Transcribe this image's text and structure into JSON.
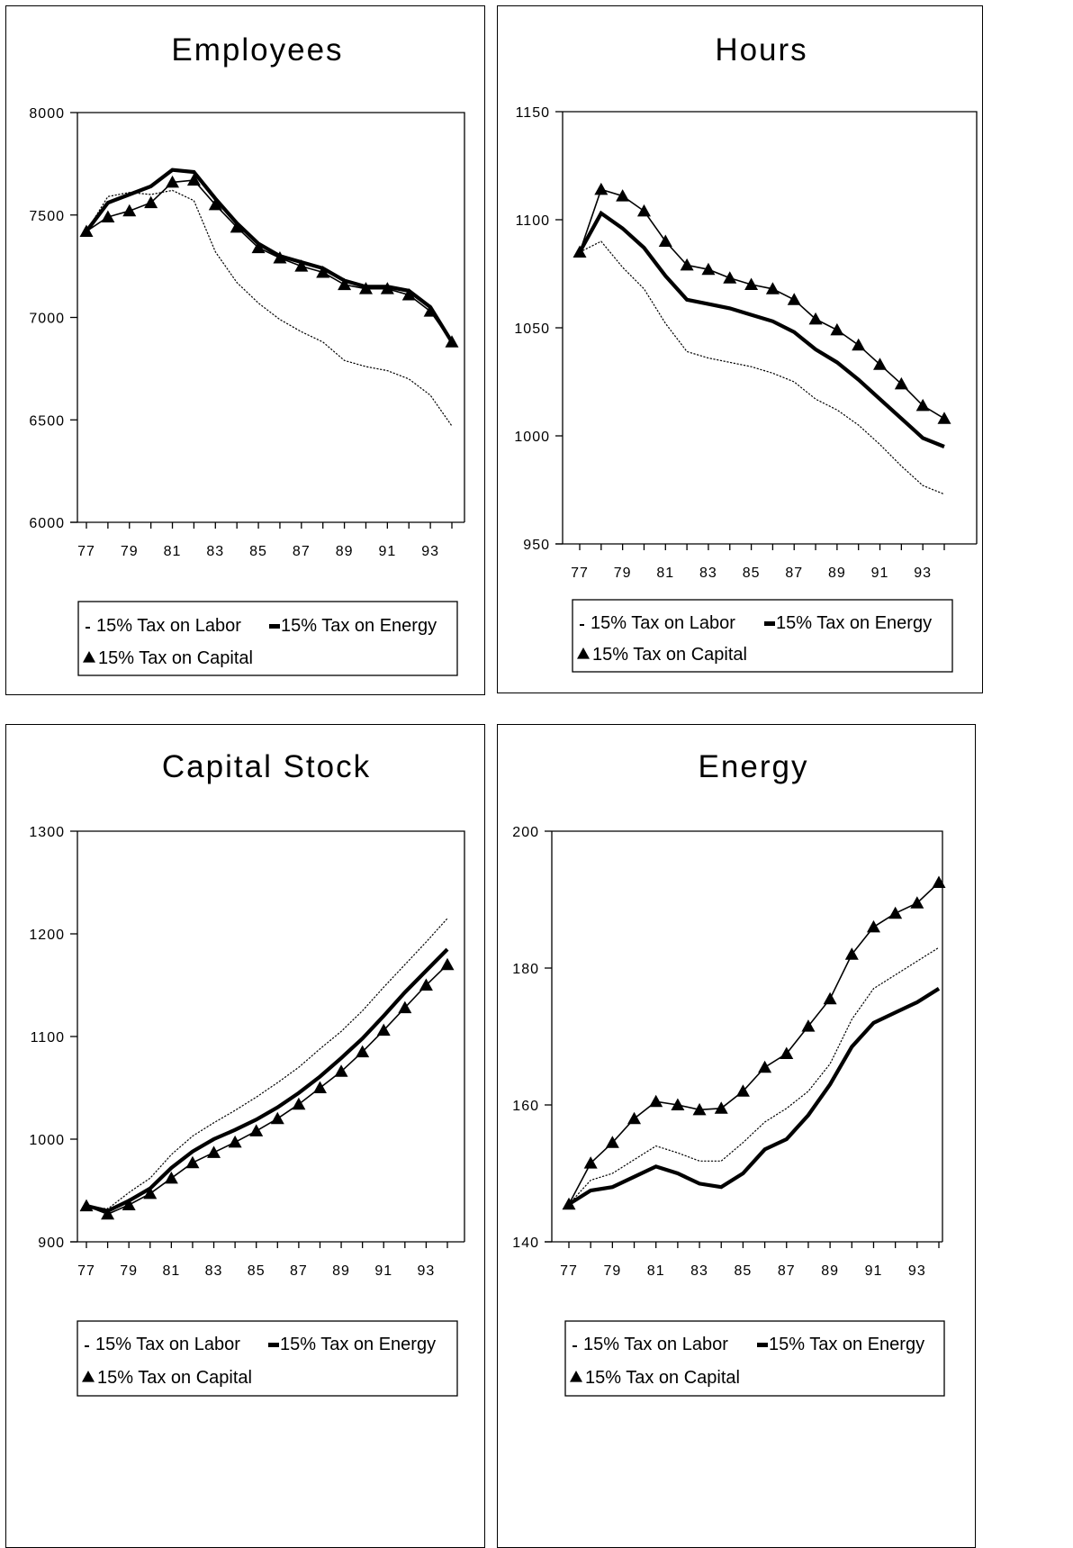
{
  "legend": {
    "labor": "15% Tax on Labor",
    "energy": "15% Tax on Energy",
    "capital": "15% Tax on Capital"
  },
  "chart_data": [
    {
      "type": "line",
      "title": "Employees",
      "x": [
        77,
        78,
        79,
        80,
        81,
        82,
        83,
        84,
        85,
        86,
        87,
        88,
        89,
        90,
        91,
        92,
        93,
        94
      ],
      "xticks": [
        "77",
        "79",
        "81",
        "83",
        "85",
        "87",
        "89",
        "91",
        "93"
      ],
      "yticks": [
        "6000",
        "6500",
        "7000",
        "7500",
        "8000"
      ],
      "ylim": [
        6000,
        8000
      ],
      "series": [
        {
          "name": "15% Tax on Labor",
          "values": [
            7420,
            7590,
            7610,
            7600,
            7620,
            7570,
            7320,
            7170,
            7070,
            6990,
            6930,
            6880,
            6790,
            6760,
            6740,
            6700,
            6620,
            6470
          ]
        },
        {
          "name": "15% Tax on Energy",
          "values": [
            7420,
            7560,
            7600,
            7640,
            7720,
            7710,
            7580,
            7460,
            7360,
            7300,
            7270,
            7240,
            7180,
            7150,
            7150,
            7130,
            7050,
            6880
          ]
        },
        {
          "name": "15% Tax on Capital",
          "values": [
            7420,
            7490,
            7520,
            7560,
            7660,
            7670,
            7550,
            7440,
            7340,
            7290,
            7250,
            7220,
            7160,
            7140,
            7140,
            7110,
            7030,
            6880
          ]
        }
      ]
    },
    {
      "type": "line",
      "title": "Hours",
      "x": [
        77,
        78,
        79,
        80,
        81,
        82,
        83,
        84,
        85,
        86,
        87,
        88,
        89,
        90,
        91,
        92,
        93,
        94
      ],
      "xticks": [
        "77",
        "79",
        "81",
        "83",
        "85",
        "87",
        "89",
        "91",
        "93"
      ],
      "yticks": [
        "950",
        "1000",
        "1050",
        "1100",
        "1150"
      ],
      "ylim": [
        950,
        1150
      ],
      "series": [
        {
          "name": "15% Tax on Labor",
          "values": [
            1085,
            1090,
            1078,
            1068,
            1052,
            1039,
            1036,
            1034,
            1032,
            1029,
            1025,
            1017,
            1012,
            1005,
            996,
            986,
            977,
            973
          ]
        },
        {
          "name": "15% Tax on Energy",
          "values": [
            1085,
            1103,
            1096,
            1087,
            1074,
            1063,
            1061,
            1059,
            1056,
            1053,
            1048,
            1040,
            1034,
            1026,
            1017,
            1008,
            999,
            995
          ]
        },
        {
          "name": "15% Tax on Capital",
          "values": [
            1085,
            1114,
            1111,
            1104,
            1090,
            1079,
            1077,
            1073,
            1070,
            1068,
            1063,
            1054,
            1049,
            1042,
            1033,
            1024,
            1014,
            1008
          ]
        }
      ]
    },
    {
      "type": "line",
      "title": "Capital Stock",
      "x": [
        77,
        78,
        79,
        80,
        81,
        82,
        83,
        84,
        85,
        86,
        87,
        88,
        89,
        90,
        91,
        92,
        93,
        94
      ],
      "xticks": [
        "77",
        "79",
        "81",
        "83",
        "85",
        "87",
        "89",
        "91",
        "93"
      ],
      "yticks": [
        "900",
        "1000",
        "1100",
        "1200",
        "1300"
      ],
      "ylim": [
        900,
        1300
      ],
      "series": [
        {
          "name": "15% Tax on Labor",
          "values": [
            935,
            932,
            948,
            962,
            985,
            1003,
            1016,
            1028,
            1041,
            1055,
            1070,
            1088,
            1105,
            1125,
            1148,
            1170,
            1192,
            1215
          ]
        },
        {
          "name": "15% Tax on Energy",
          "values": [
            935,
            930,
            940,
            952,
            972,
            988,
            1000,
            1009,
            1019,
            1031,
            1045,
            1061,
            1079,
            1098,
            1120,
            1143,
            1164,
            1185
          ]
        },
        {
          "name": "15% Tax on Capital",
          "values": [
            935,
            927,
            936,
            947,
            962,
            977,
            987,
            997,
            1008,
            1020,
            1034,
            1050,
            1066,
            1085,
            1106,
            1128,
            1150,
            1170
          ]
        }
      ]
    },
    {
      "type": "line",
      "title": "Energy",
      "x": [
        77,
        78,
        79,
        80,
        81,
        82,
        83,
        84,
        85,
        86,
        87,
        88,
        89,
        90,
        91,
        92,
        93,
        94
      ],
      "xticks": [
        "77",
        "79",
        "81",
        "83",
        "85",
        "87",
        "89",
        "91",
        "93"
      ],
      "yticks": [
        "140",
        "160",
        "180",
        "200"
      ],
      "ylim": [
        140,
        200
      ],
      "series": [
        {
          "name": "15% Tax on Labor",
          "values": [
            145.5,
            149,
            150,
            152,
            154,
            153,
            151.8,
            151.8,
            154.5,
            157.5,
            159.5,
            162,
            166,
            172.5,
            177,
            179,
            181,
            183
          ]
        },
        {
          "name": "15% Tax on Energy",
          "values": [
            145.5,
            147.5,
            148,
            149.5,
            151,
            150,
            148.5,
            148,
            150,
            153.5,
            155,
            158.5,
            163,
            168.5,
            172,
            173.5,
            175,
            177
          ]
        },
        {
          "name": "15% Tax on Capital",
          "values": [
            145.5,
            151.5,
            154.5,
            158,
            160.5,
            160,
            159.3,
            159.5,
            162,
            165.5,
            167.5,
            171.5,
            175.5,
            182,
            186,
            188,
            189.5,
            192.5
          ]
        }
      ]
    }
  ]
}
